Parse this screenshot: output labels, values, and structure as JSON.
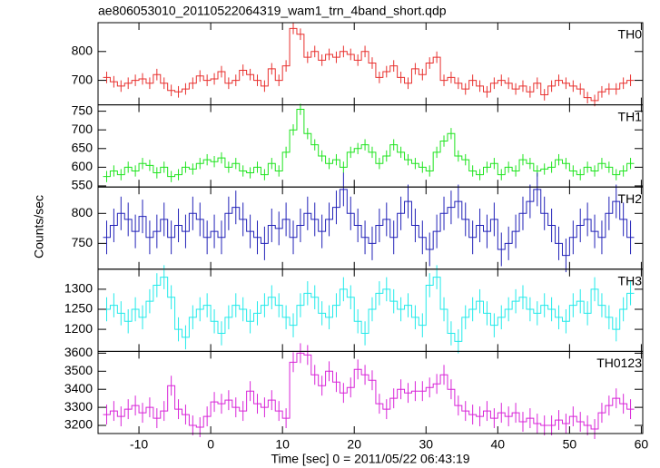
{
  "chart_data": [
    {
      "type": "line",
      "title": "ae806053010_20110522064319_wam1_trn_4band_short.qdp",
      "label": "TH0",
      "color": "#e8302e",
      "x": [
        -14.5,
        -13.5,
        -12.5,
        -11.5,
        -10.5,
        -9.5,
        -8.5,
        -7.5,
        -6.5,
        -5.5,
        -4.5,
        -3.5,
        -2.5,
        -1.5,
        -0.5,
        0.5,
        1.5,
        2.5,
        3.5,
        4.5,
        5.5,
        6.5,
        7.5,
        8.5,
        9.5,
        10.5,
        11.5,
        12.5,
        13.5,
        14.5,
        15.5,
        16.5,
        17.5,
        18.5,
        19.5,
        20.5,
        21.5,
        22.5,
        23.5,
        24.5,
        25.5,
        26.5,
        27.5,
        28.5,
        29.5,
        30.5,
        31.5,
        32.5,
        33.5,
        34.5,
        35.5,
        36.5,
        37.5,
        38.5,
        39.5,
        40.5,
        41.5,
        42.5,
        43.5,
        44.5,
        45.5,
        46.5,
        47.5,
        48.5,
        49.5,
        50.5,
        51.5,
        52.5,
        53.5,
        54.5,
        55.5,
        56.5,
        57.5,
        58.5
      ],
      "values": [
        710,
        695,
        680,
        690,
        700,
        705,
        690,
        720,
        690,
        665,
        660,
        670,
        690,
        715,
        700,
        705,
        730,
        690,
        700,
        735,
        720,
        700,
        680,
        740,
        700,
        750,
        880,
        860,
        780,
        800,
        770,
        790,
        780,
        800,
        790,
        770,
        800,
        760,
        710,
        730,
        750,
        710,
        690,
        740,
        720,
        760,
        780,
        700,
        710,
        690,
        670,
        700,
        680,
        660,
        690,
        700,
        690,
        670,
        680,
        660,
        690,
        650,
        680,
        700,
        690,
        680,
        670,
        640,
        630,
        660,
        670,
        670,
        690,
        700
      ],
      "error": 20,
      "xlim": [
        -15.7,
        60.2
      ],
      "xticks": [
        -10,
        0,
        10,
        20,
        30,
        40,
        50,
        60
      ],
      "ylim": [
        615,
        900
      ],
      "yticks": [
        700,
        800
      ]
    },
    {
      "type": "line",
      "label": "TH1",
      "color": "#1ee41e",
      "x": [
        -14.5,
        -13.5,
        -12.5,
        -11.5,
        -10.5,
        -9.5,
        -8.5,
        -7.5,
        -6.5,
        -5.5,
        -4.5,
        -3.5,
        -2.5,
        -1.5,
        -0.5,
        0.5,
        1.5,
        2.5,
        3.5,
        4.5,
        5.5,
        6.5,
        7.5,
        8.5,
        9.5,
        10.5,
        11.5,
        12.5,
        13.5,
        14.5,
        15.5,
        16.5,
        17.5,
        18.5,
        19.5,
        20.5,
        21.5,
        22.5,
        23.5,
        24.5,
        25.5,
        26.5,
        27.5,
        28.5,
        29.5,
        30.5,
        31.5,
        32.5,
        33.5,
        34.5,
        35.5,
        36.5,
        37.5,
        38.5,
        39.5,
        40.5,
        41.5,
        42.5,
        43.5,
        44.5,
        45.5,
        46.5,
        47.5,
        48.5,
        49.5,
        50.5,
        51.5,
        52.5,
        53.5,
        54.5,
        55.5,
        56.5,
        57.5,
        58.5
      ],
      "values": [
        575,
        590,
        580,
        600,
        590,
        610,
        605,
        585,
        600,
        575,
        580,
        600,
        595,
        610,
        620,
        615,
        625,
        600,
        610,
        590,
        585,
        600,
        580,
        610,
        590,
        640,
        700,
        755,
        690,
        660,
        630,
        610,
        620,
        600,
        640,
        650,
        660,
        640,
        610,
        630,
        660,
        640,
        620,
        610,
        600,
        590,
        640,
        670,
        690,
        630,
        620,
        590,
        580,
        600,
        610,
        580,
        600,
        590,
        620,
        610,
        590,
        595,
        600,
        620,
        610,
        590,
        580,
        600,
        590,
        610,
        600,
        580,
        590,
        610
      ],
      "error": 15,
      "xlim": [
        -15.7,
        60.2
      ],
      "xticks": [
        -10,
        0,
        10,
        20,
        30,
        40,
        50,
        60
      ],
      "ylim": [
        547,
        767
      ],
      "yticks": [
        550,
        600,
        650,
        700,
        750
      ]
    },
    {
      "type": "line",
      "label": "TH2",
      "ylabel": "Counts/sec",
      "color": "#2222b8",
      "x": [
        -14.5,
        -13.5,
        -12.5,
        -11.5,
        -10.5,
        -9.5,
        -8.5,
        -7.5,
        -6.5,
        -5.5,
        -4.5,
        -3.5,
        -2.5,
        -1.5,
        -0.5,
        0.5,
        1.5,
        2.5,
        3.5,
        4.5,
        5.5,
        6.5,
        7.5,
        8.5,
        9.5,
        10.5,
        11.5,
        12.5,
        13.5,
        14.5,
        15.5,
        16.5,
        17.5,
        18.5,
        19.5,
        20.5,
        21.5,
        22.5,
        23.5,
        24.5,
        25.5,
        26.5,
        27.5,
        28.5,
        29.5,
        30.5,
        31.5,
        32.5,
        33.5,
        34.5,
        35.5,
        36.5,
        37.5,
        38.5,
        39.5,
        40.5,
        41.5,
        42.5,
        43.5,
        44.5,
        45.5,
        46.5,
        47.5,
        48.5,
        49.5,
        50.5,
        51.5,
        52.5,
        53.5,
        54.5,
        55.5,
        56.5,
        57.5,
        58.5
      ],
      "values": [
        760,
        780,
        800,
        790,
        770,
        795,
        760,
        770,
        790,
        760,
        780,
        770,
        800,
        790,
        760,
        770,
        760,
        800,
        810,
        790,
        770,
        760,
        750,
        780,
        775,
        790,
        760,
        780,
        800,
        790,
        770,
        790,
        810,
        840,
        800,
        780,
        760,
        750,
        780,
        790,
        760,
        800,
        820,
        780,
        760,
        740,
        770,
        800,
        810,
        820,
        790,
        760,
        780,
        770,
        790,
        740,
        750,
        770,
        800,
        820,
        840,
        800,
        780,
        750,
        730,
        760,
        780,
        790,
        770,
        760,
        800,
        820,
        790,
        760
      ],
      "error": 28,
      "xlim": [
        -15.7,
        60.2
      ],
      "xticks": [
        -10,
        0,
        10,
        20,
        30,
        40,
        50,
        60
      ],
      "ylim": [
        707,
        844
      ],
      "yticks": [
        750,
        800
      ]
    },
    {
      "type": "line",
      "label": "TH3",
      "color": "#22eaea",
      "x": [
        -14.5,
        -13.5,
        -12.5,
        -11.5,
        -10.5,
        -9.5,
        -8.5,
        -7.5,
        -6.5,
        -5.5,
        -4.5,
        -3.5,
        -2.5,
        -1.5,
        -0.5,
        0.5,
        1.5,
        2.5,
        3.5,
        4.5,
        5.5,
        6.5,
        7.5,
        8.5,
        9.5,
        10.5,
        11.5,
        12.5,
        13.5,
        14.5,
        15.5,
        16.5,
        17.5,
        18.5,
        19.5,
        20.5,
        21.5,
        22.5,
        23.5,
        24.5,
        25.5,
        26.5,
        27.5,
        28.5,
        29.5,
        30.5,
        31.5,
        32.5,
        33.5,
        34.5,
        35.5,
        36.5,
        37.5,
        38.5,
        39.5,
        40.5,
        41.5,
        42.5,
        43.5,
        44.5,
        45.5,
        46.5,
        47.5,
        48.5,
        49.5,
        50.5,
        51.5,
        52.5,
        53.5,
        54.5,
        55.5,
        56.5,
        57.5,
        58.5
      ],
      "values": [
        1250,
        1260,
        1240,
        1220,
        1250,
        1230,
        1270,
        1310,
        1330,
        1280,
        1200,
        1180,
        1230,
        1250,
        1260,
        1220,
        1190,
        1230,
        1260,
        1250,
        1220,
        1240,
        1260,
        1280,
        1260,
        1230,
        1210,
        1260,
        1290,
        1280,
        1240,
        1230,
        1260,
        1300,
        1280,
        1220,
        1190,
        1250,
        1290,
        1300,
        1270,
        1250,
        1260,
        1230,
        1210,
        1310,
        1330,
        1250,
        1190,
        1170,
        1230,
        1250,
        1270,
        1240,
        1210,
        1230,
        1250,
        1270,
        1280,
        1250,
        1240,
        1260,
        1250,
        1230,
        1220,
        1260,
        1270,
        1240,
        1300,
        1260,
        1230,
        1200,
        1250,
        1290
      ],
      "error": 30,
      "xlim": [
        -15.7,
        60.2
      ],
      "xticks": [
        -10,
        0,
        10,
        20,
        30,
        40,
        50,
        60
      ],
      "ylim": [
        1145,
        1350
      ],
      "yticks": [
        1200,
        1250,
        1300
      ]
    },
    {
      "type": "line",
      "label": "TH0123",
      "xlabel": "Time [sec] 0 = 2011/05/22 06:43:19",
      "color": "#d824d8",
      "x": [
        -14.5,
        -13.5,
        -12.5,
        -11.5,
        -10.5,
        -9.5,
        -8.5,
        -7.5,
        -6.5,
        -5.5,
        -4.5,
        -3.5,
        -2.5,
        -1.5,
        -0.5,
        0.5,
        1.5,
        2.5,
        3.5,
        4.5,
        5.5,
        6.5,
        7.5,
        8.5,
        9.5,
        10.5,
        11.5,
        12.5,
        13.5,
        14.5,
        15.5,
        16.5,
        17.5,
        18.5,
        19.5,
        20.5,
        21.5,
        22.5,
        23.5,
        24.5,
        25.5,
        26.5,
        27.5,
        28.5,
        29.5,
        30.5,
        31.5,
        32.5,
        33.5,
        34.5,
        35.5,
        36.5,
        37.5,
        38.5,
        39.5,
        40.5,
        41.5,
        42.5,
        43.5,
        44.5,
        45.5,
        46.5,
        47.5,
        48.5,
        49.5,
        50.5,
        51.5,
        52.5,
        53.5,
        54.5,
        55.5,
        56.5,
        57.5,
        58.5
      ],
      "values": [
        3260,
        3280,
        3250,
        3290,
        3310,
        3270,
        3300,
        3240,
        3280,
        3420,
        3290,
        3260,
        3200,
        3190,
        3250,
        3330,
        3320,
        3340,
        3300,
        3280,
        3390,
        3320,
        3300,
        3340,
        3280,
        3240,
        3550,
        3600,
        3590,
        3480,
        3420,
        3500,
        3440,
        3380,
        3410,
        3510,
        3480,
        3450,
        3320,
        3290,
        3350,
        3400,
        3380,
        3390,
        3390,
        3410,
        3430,
        3480,
        3400,
        3310,
        3280,
        3260,
        3250,
        3280,
        3240,
        3270,
        3250,
        3270,
        3220,
        3240,
        3210,
        3200,
        3200,
        3230,
        3210,
        3250,
        3220,
        3200,
        3180,
        3270,
        3310,
        3350,
        3320,
        3290
      ],
      "error": 55,
      "xlim": [
        -15.7,
        60.2
      ],
      "xticks": [
        -10,
        0,
        10,
        20,
        30,
        40,
        50,
        60
      ],
      "ylim": [
        3155,
        3610
      ],
      "yticks": [
        3200,
        3300,
        3400,
        3500,
        3600
      ]
    }
  ]
}
